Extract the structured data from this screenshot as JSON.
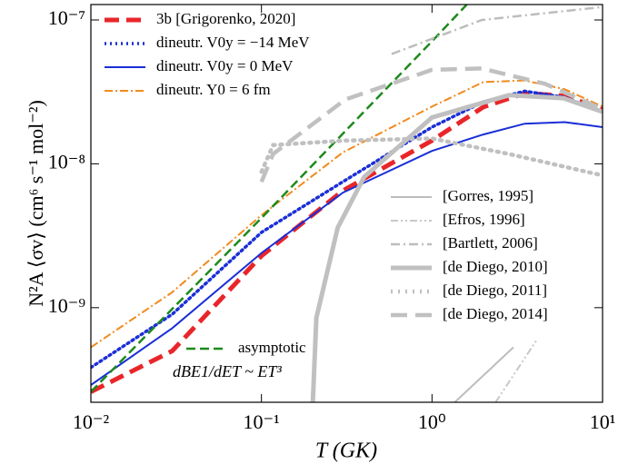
{
  "chart_data": {
    "type": "line",
    "x_label": "T  (GK)",
    "y_label": "N²A ⟨σv⟩  (cm⁶ s⁻¹ mol⁻²)",
    "annotation": "dBE1/dET ~ ET³",
    "log_x": true,
    "log_y": true,
    "xlim": [
      0.01,
      10
    ],
    "ylim": [
      2.2e-10,
      1.28e-07
    ],
    "xticks": [
      {
        "value": 0.01,
        "label": "10⁻²"
      },
      {
        "value": 0.1,
        "label": "10⁻¹"
      },
      {
        "value": 1,
        "label": "10⁰"
      },
      {
        "value": 10,
        "label": "10¹"
      }
    ],
    "yticks": [
      {
        "value": 1e-09,
        "label": "10⁻⁹"
      },
      {
        "value": 1e-08,
        "label": "10⁻⁸"
      },
      {
        "value": 1e-07,
        "label": "10⁻⁷"
      }
    ],
    "series": [
      {
        "name": "3b [Grigorenko, 2020]",
        "color": "#e8262a",
        "dash": "16,8",
        "width": 5,
        "x": [
          0.01,
          0.03,
          0.1,
          0.3,
          1,
          2,
          3.5,
          6,
          10
        ],
        "values": [
          2.6e-10,
          5e-10,
          2.29e-09,
          6.5e-09,
          1.45e-08,
          2.48e-08,
          3.1e-08,
          2.96e-08,
          2.4e-08
        ]
      },
      {
        "name": "dineutr. V0y = −14 MeV",
        "color": "#1a2fd6",
        "dash": "2,4",
        "width": 3.5,
        "x": [
          0.01,
          0.03,
          0.1,
          0.3,
          1,
          2,
          3.5,
          6,
          10
        ],
        "values": [
          3.84e-10,
          9e-10,
          3.34e-09,
          7.5e-09,
          1.8e-08,
          2.7e-08,
          3.2e-08,
          2.9e-08,
          2.3e-08
        ]
      },
      {
        "name": "dineutr. V0y = 0 MeV",
        "color": "#1a2fd6",
        "dash": "none",
        "width": 2,
        "x": [
          0.01,
          0.03,
          0.1,
          0.3,
          1,
          2,
          3.5,
          6,
          10
        ],
        "values": [
          2.9e-10,
          7.2e-10,
          2.4e-09,
          6.3e-09,
          1.23e-08,
          1.6e-08,
          1.9e-08,
          1.95e-08,
          1.8e-08
        ]
      },
      {
        "name": "dineutr. Y0 = 6 fm",
        "color": "#f28a1c",
        "dash": "9,3,2,3",
        "width": 2,
        "x": [
          0.01,
          0.03,
          0.1,
          0.3,
          1,
          2,
          3.5,
          6,
          10
        ],
        "values": [
          5.3e-10,
          1.28e-09,
          4.4e-09,
          1.2e-08,
          2.5e-08,
          3.7e-08,
          3.8e-08,
          3.3e-08,
          2.5e-08
        ]
      },
      {
        "name": "asymptotic",
        "color": "#1d8a1d",
        "dash": "10,5",
        "width": 2.5,
        "x": [
          0.01,
          0.1,
          1,
          1.6
        ],
        "values": [
          2.6e-10,
          4.2e-09,
          7.1e-08,
          1.28e-07
        ]
      },
      {
        "name": "[Gorres, 1995]",
        "color": "#bdbdbd",
        "dash": "none",
        "width": 2,
        "x": [
          1.36,
          3.0
        ],
        "values": [
          2.2e-10,
          5.3e-10
        ]
      },
      {
        "name": "[Efros, 1996]",
        "color": "#c8c8c8",
        "dash": "8,3,2,3,2,3",
        "width": 2,
        "x": [
          2.36,
          4.09
        ],
        "values": [
          2.2e-10,
          5.9e-10
        ]
      },
      {
        "name": "[Bartlett, 2006]",
        "color": "#bdbdbd",
        "dash": "10,4,2,4",
        "width": 2.5,
        "x": [
          0.58,
          1.96,
          10
        ],
        "values": [
          5.8e-08,
          1e-07,
          1.23e-07
        ]
      },
      {
        "name": "[de Diego, 2010]",
        "color": "#c0c0c0",
        "dash": "none",
        "width": 5,
        "x": [
          0.2,
          0.21,
          0.28,
          0.4,
          1,
          2.83,
          5.9,
          10
        ],
        "values": [
          2.2e-10,
          8.5e-10,
          3.6e-09,
          8.1e-09,
          2.1e-08,
          3e-08,
          2.86e-08,
          2.3e-08
        ]
      },
      {
        "name": "[de Diego, 2011]",
        "color": "#c0c0c0",
        "dash": "2,6",
        "width": 4.5,
        "x": [
          0.1,
          0.117,
          0.31,
          1,
          2.83,
          10
        ],
        "values": [
          8.8e-09,
          1.35e-08,
          1.45e-08,
          1.5e-08,
          1.17e-08,
          8.3e-09
        ]
      },
      {
        "name": "[de Diego, 2014]",
        "color": "#c0c0c0",
        "dash": "18,9",
        "width": 4.5,
        "x": [
          0.1,
          0.117,
          0.31,
          1,
          1.96,
          4.6,
          10
        ],
        "values": [
          7.5e-09,
          1.17e-08,
          2.8e-08,
          4.5e-08,
          4.6e-08,
          3.6e-08,
          2.4e-08
        ]
      }
    ]
  }
}
